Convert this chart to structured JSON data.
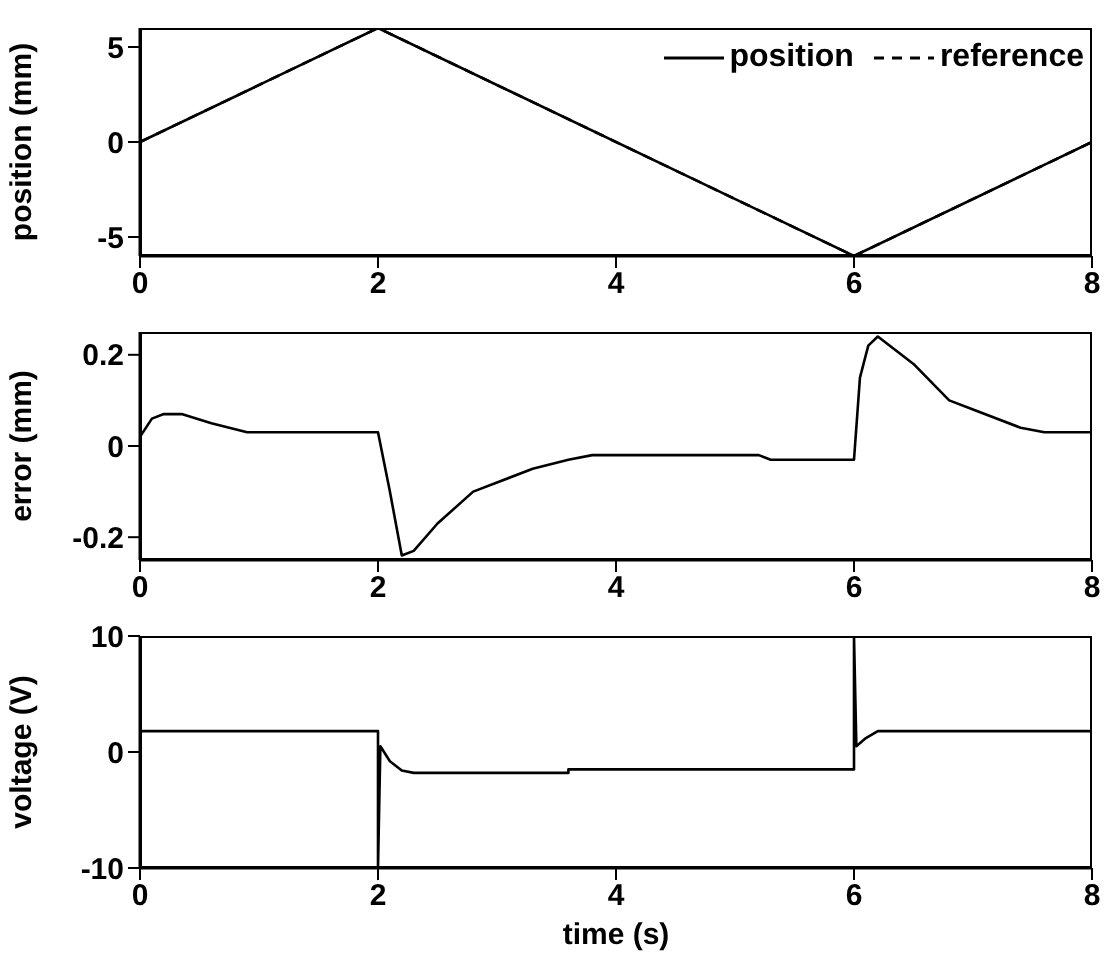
{
  "chart_data": [
    {
      "type": "line",
      "ylabel": "position (mm)",
      "x": [
        0,
        2,
        6,
        8
      ],
      "xlim": [
        0,
        8
      ],
      "xticks": [
        0,
        2,
        4,
        6,
        8
      ],
      "ylim": [
        -6,
        6
      ],
      "yticks": [
        -5,
        0,
        5
      ],
      "grid": false,
      "legend": "top right",
      "marker": "none",
      "series": [
        {
          "name": "position",
          "color": "#000000",
          "line_style": "solid",
          "values": [
            0,
            6,
            -6,
            0
          ]
        },
        {
          "name": "reference",
          "color": "#000000",
          "line_style": "dashed",
          "values": [
            0,
            6,
            -6,
            0
          ]
        }
      ]
    },
    {
      "type": "line",
      "ylabel": "error (mm)",
      "xlim": [
        0,
        8
      ],
      "xticks": [
        0,
        2,
        4,
        6,
        8
      ],
      "ylim": [
        -0.25,
        0.25
      ],
      "yticks": [
        -0.2,
        0,
        0.2
      ],
      "grid": false,
      "legend": false,
      "marker": "none",
      "series": [
        {
          "color": "#000000",
          "line_style": "solid",
          "x": [
            0,
            0.1,
            0.2,
            0.35,
            0.6,
            0.9,
            2.0,
            2.1,
            2.2,
            2.3,
            2.5,
            2.8,
            3.0,
            3.3,
            3.6,
            3.8,
            5.2,
            5.3,
            6.0,
            6.05,
            6.12,
            6.2,
            6.5,
            6.8,
            7.0,
            7.4,
            7.6,
            8
          ],
          "values": [
            0.02,
            0.06,
            0.07,
            0.07,
            0.05,
            0.03,
            0.03,
            -0.1,
            -0.24,
            -0.23,
            -0.17,
            -0.1,
            -0.08,
            -0.05,
            -0.03,
            -0.02,
            -0.02,
            -0.03,
            -0.03,
            0.15,
            0.22,
            0.24,
            0.18,
            0.1,
            0.08,
            0.04,
            0.03,
            0.03
          ]
        }
      ]
    },
    {
      "type": "line",
      "ylabel": "voltage (V)",
      "xlabel": "time (s)",
      "xlim": [
        0,
        8
      ],
      "xticks": [
        0,
        2,
        4,
        6,
        8
      ],
      "ylim": [
        -10,
        10
      ],
      "yticks": [
        -10,
        0,
        10
      ],
      "grid": false,
      "legend": false,
      "marker": "none",
      "series": [
        {
          "color": "#000000",
          "line_style": "solid",
          "x": [
            0,
            2,
            2,
            2.02,
            2.1,
            2.2,
            2.3,
            3.6,
            3.6,
            6,
            6,
            6.02,
            6.1,
            6.2,
            8
          ],
          "values": [
            1.8,
            1.8,
            -10,
            0.5,
            -0.8,
            -1.6,
            -1.8,
            -1.8,
            -1.5,
            -1.5,
            10,
            0.5,
            1.2,
            1.8,
            1.8
          ]
        }
      ]
    }
  ]
}
